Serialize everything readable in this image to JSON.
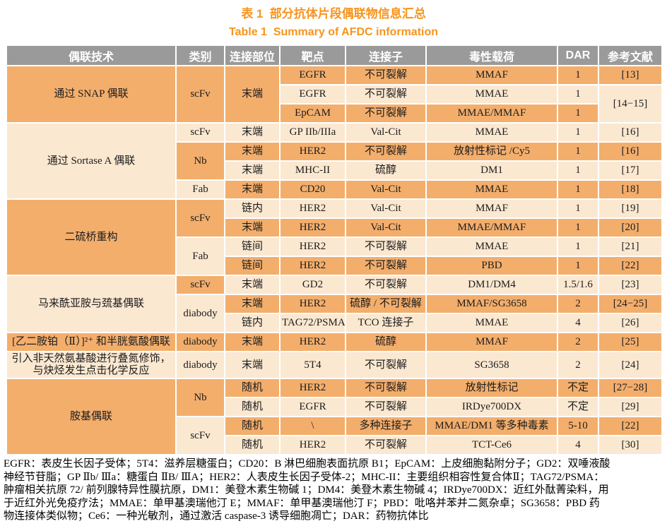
{
  "page": {
    "title_cn": "表 1  部分抗体片段偶联物信息汇总",
    "title_en": "Table 1  Summary of AFDC information"
  },
  "colors": {
    "accent_orange": "#F7941D",
    "header_gray": "#9A9A9A",
    "row_dark": "#F3AE6C",
    "row_light": "#FBE8D1"
  },
  "table": {
    "headers": [
      "偶联技术",
      "类别",
      "连接部位",
      "靶点",
      "连接子",
      "毒性载荷",
      "DAR",
      "参考文献"
    ],
    "col_keys": [
      "technique",
      "category",
      "site",
      "target",
      "linker",
      "payload",
      "dar",
      "reference"
    ],
    "rows": [
      [
        {
          "c": 0,
          "t": "通过 SNAP 偶联",
          "rs": 3,
          "s": "d"
        },
        {
          "c": 1,
          "t": "scFv",
          "rs": 3,
          "s": "d"
        },
        {
          "c": 2,
          "t": "末端",
          "rs": 3,
          "s": "d"
        },
        {
          "c": 3,
          "t": "EGFR",
          "s": "d"
        },
        {
          "c": 4,
          "t": "不可裂解",
          "s": "d"
        },
        {
          "c": 5,
          "t": "MMAF",
          "s": "d"
        },
        {
          "c": 6,
          "t": "1",
          "s": "d"
        },
        {
          "c": 7,
          "t": "[13]",
          "s": "d"
        }
      ],
      [
        {
          "c": 3,
          "t": "EGFR",
          "s": "l"
        },
        {
          "c": 4,
          "t": "不可裂解",
          "s": "l"
        },
        {
          "c": 5,
          "t": "MMAE",
          "s": "l"
        },
        {
          "c": 6,
          "t": "1",
          "s": "l"
        },
        {
          "c": 7,
          "t": "[14−15]",
          "rs": 2,
          "s": "l"
        }
      ],
      [
        {
          "c": 3,
          "t": "EpCAM",
          "s": "d"
        },
        {
          "c": 4,
          "t": "不可裂解",
          "s": "d"
        },
        {
          "c": 5,
          "t": "MMAE/MMAF",
          "s": "d"
        },
        {
          "c": 6,
          "t": "1",
          "s": "d"
        }
      ],
      [
        {
          "c": 0,
          "t": "通过 Sortase A 偶联",
          "rs": 4,
          "s": "l"
        },
        {
          "c": 1,
          "t": "scFv",
          "s": "l"
        },
        {
          "c": 2,
          "t": "末端",
          "s": "l"
        },
        {
          "c": 3,
          "t": "GP IIb/IIIa",
          "s": "l"
        },
        {
          "c": 4,
          "t": "Val-Cit",
          "s": "l"
        },
        {
          "c": 5,
          "t": "MMAE",
          "s": "l"
        },
        {
          "c": 6,
          "t": "1",
          "s": "l"
        },
        {
          "c": 7,
          "t": "[16]",
          "s": "l"
        }
      ],
      [
        {
          "c": 1,
          "t": "Nb",
          "rs": 2,
          "s": "d"
        },
        {
          "c": 2,
          "t": "末端",
          "s": "d"
        },
        {
          "c": 3,
          "t": "HER2",
          "s": "d"
        },
        {
          "c": 4,
          "t": "不可裂解",
          "s": "d"
        },
        {
          "c": 5,
          "t": "放射性标记 /Cy5",
          "s": "d"
        },
        {
          "c": 6,
          "t": "1",
          "s": "d"
        },
        {
          "c": 7,
          "t": "[16]",
          "s": "d"
        }
      ],
      [
        {
          "c": 2,
          "t": "末端",
          "s": "l"
        },
        {
          "c": 3,
          "t": "MHC-II",
          "s": "l"
        },
        {
          "c": 4,
          "t": "硫醇",
          "s": "l"
        },
        {
          "c": 5,
          "t": "DM1",
          "s": "l"
        },
        {
          "c": 6,
          "t": "1",
          "s": "l"
        },
        {
          "c": 7,
          "t": "[17]",
          "s": "l"
        }
      ],
      [
        {
          "c": 1,
          "t": "Fab",
          "s": "l"
        },
        {
          "c": 2,
          "t": "末端",
          "s": "d"
        },
        {
          "c": 3,
          "t": "CD20",
          "s": "d"
        },
        {
          "c": 4,
          "t": "Val-Cit",
          "s": "d"
        },
        {
          "c": 5,
          "t": "MMAE",
          "s": "d"
        },
        {
          "c": 6,
          "t": "1",
          "s": "d"
        },
        {
          "c": 7,
          "t": "[18]",
          "s": "d"
        }
      ],
      [
        {
          "c": 0,
          "t": "二硫桥重构",
          "rs": 4,
          "s": "d"
        },
        {
          "c": 1,
          "t": "scFv",
          "rs": 2,
          "s": "d"
        },
        {
          "c": 2,
          "t": "链内",
          "s": "l"
        },
        {
          "c": 3,
          "t": "HER2",
          "s": "l"
        },
        {
          "c": 4,
          "t": "Val-Cit",
          "s": "l"
        },
        {
          "c": 5,
          "t": "MMAF",
          "s": "l"
        },
        {
          "c": 6,
          "t": "1",
          "s": "l"
        },
        {
          "c": 7,
          "t": "[19]",
          "s": "l"
        }
      ],
      [
        {
          "c": 2,
          "t": "末端",
          "s": "d"
        },
        {
          "c": 3,
          "t": "HER2",
          "s": "d"
        },
        {
          "c": 4,
          "t": "Val-Cit",
          "s": "d"
        },
        {
          "c": 5,
          "t": "MMAE/MMAF",
          "s": "d"
        },
        {
          "c": 6,
          "t": "1",
          "s": "d"
        },
        {
          "c": 7,
          "t": "[20]",
          "s": "d"
        }
      ],
      [
        {
          "c": 1,
          "t": "Fab",
          "rs": 2,
          "s": "l"
        },
        {
          "c": 2,
          "t": "链间",
          "s": "l"
        },
        {
          "c": 3,
          "t": "HER2",
          "s": "l"
        },
        {
          "c": 4,
          "t": "不可裂解",
          "s": "l"
        },
        {
          "c": 5,
          "t": "MMAE",
          "s": "l"
        },
        {
          "c": 6,
          "t": "1",
          "s": "l"
        },
        {
          "c": 7,
          "t": "[21]",
          "s": "l"
        }
      ],
      [
        {
          "c": 2,
          "t": "链间",
          "s": "d"
        },
        {
          "c": 3,
          "t": "HER2",
          "s": "d"
        },
        {
          "c": 4,
          "t": "不可裂解",
          "s": "d"
        },
        {
          "c": 5,
          "t": "PBD",
          "s": "d"
        },
        {
          "c": 6,
          "t": "1",
          "s": "d"
        },
        {
          "c": 7,
          "t": "[22]",
          "s": "d"
        }
      ],
      [
        {
          "c": 0,
          "t": "马来酰亚胺与巯基偶联",
          "rs": 3,
          "s": "l"
        },
        {
          "c": 1,
          "t": "scFv",
          "s": "d"
        },
        {
          "c": 2,
          "t": "末端",
          "s": "l"
        },
        {
          "c": 3,
          "t": "GD2",
          "s": "l"
        },
        {
          "c": 4,
          "t": "不可裂解",
          "s": "l"
        },
        {
          "c": 5,
          "t": "DM1/DM4",
          "s": "l"
        },
        {
          "c": 6,
          "t": "1.5/1.6",
          "s": "l"
        },
        {
          "c": 7,
          "t": "[23]",
          "s": "l"
        }
      ],
      [
        {
          "c": 1,
          "t": "diabody",
          "rs": 2,
          "s": "l"
        },
        {
          "c": 2,
          "t": "末端",
          "s": "d"
        },
        {
          "c": 3,
          "t": "HER2",
          "s": "d"
        },
        {
          "c": 4,
          "t": "硫醇 / 不可裂解",
          "s": "d"
        },
        {
          "c": 5,
          "t": "MMAF/SG3658",
          "s": "d"
        },
        {
          "c": 6,
          "t": "2",
          "s": "d"
        },
        {
          "c": 7,
          "t": "[24−25]",
          "s": "d"
        }
      ],
      [
        {
          "c": 2,
          "t": "链内",
          "s": "l"
        },
        {
          "c": 3,
          "t": "TAG72/PSMA",
          "s": "l"
        },
        {
          "c": 4,
          "t": "TCO 连接子",
          "s": "l"
        },
        {
          "c": 5,
          "t": "MMAE",
          "s": "l"
        },
        {
          "c": 6,
          "t": "4",
          "s": "l"
        },
        {
          "c": 7,
          "t": "[26]",
          "s": "l"
        }
      ],
      [
        {
          "c": 0,
          "t": "[乙二胺铂（Ⅱ）]²⁺ 和半胱氨酸偶联",
          "s": "d",
          "a": "left"
        },
        {
          "c": 1,
          "t": "diabody",
          "s": "d"
        },
        {
          "c": 2,
          "t": "末端",
          "s": "d"
        },
        {
          "c": 3,
          "t": "HER2",
          "s": "d"
        },
        {
          "c": 4,
          "t": "硫醇",
          "s": "d"
        },
        {
          "c": 5,
          "t": "MMAF",
          "s": "d"
        },
        {
          "c": 6,
          "t": "2",
          "s": "d"
        },
        {
          "c": 7,
          "t": "[25]",
          "s": "d"
        }
      ],
      [
        {
          "c": 0,
          "t": "引入非天然氨基酸进行叠氮修饰，与炔烃发生点击化学反应",
          "s": "l",
          "a": "left"
        },
        {
          "c": 1,
          "t": "diabody",
          "s": "l"
        },
        {
          "c": 2,
          "t": "末端",
          "s": "l"
        },
        {
          "c": 3,
          "t": "5T4",
          "s": "l"
        },
        {
          "c": 4,
          "t": "不可裂解",
          "s": "l"
        },
        {
          "c": 5,
          "t": "SG3658",
          "s": "l"
        },
        {
          "c": 6,
          "t": "2",
          "s": "l"
        },
        {
          "c": 7,
          "t": "[24]",
          "s": "l"
        }
      ],
      [
        {
          "c": 0,
          "t": "胺基偶联",
          "rs": 4,
          "s": "d"
        },
        {
          "c": 1,
          "t": "Nb",
          "rs": 2,
          "s": "d"
        },
        {
          "c": 2,
          "t": "随机",
          "s": "d"
        },
        {
          "c": 3,
          "t": "HER2",
          "s": "d"
        },
        {
          "c": 4,
          "t": "不可裂解",
          "s": "d"
        },
        {
          "c": 5,
          "t": "放射性标记",
          "s": "d"
        },
        {
          "c": 6,
          "t": "不定",
          "s": "d"
        },
        {
          "c": 7,
          "t": "[27−28]",
          "s": "d"
        }
      ],
      [
        {
          "c": 2,
          "t": "随机",
          "s": "l"
        },
        {
          "c": 3,
          "t": "EGFR",
          "s": "l"
        },
        {
          "c": 4,
          "t": "不可裂解",
          "s": "l"
        },
        {
          "c": 5,
          "t": "IRDye700DX",
          "s": "l"
        },
        {
          "c": 6,
          "t": "不定",
          "s": "l"
        },
        {
          "c": 7,
          "t": "[29]",
          "s": "l"
        }
      ],
      [
        {
          "c": 1,
          "t": "scFv",
          "rs": 2,
          "s": "l"
        },
        {
          "c": 2,
          "t": "随机",
          "s": "d"
        },
        {
          "c": 3,
          "t": "\\",
          "s": "d"
        },
        {
          "c": 4,
          "t": "多种连接子",
          "s": "d"
        },
        {
          "c": 5,
          "t": "MMAE/DM1 等多种毒素",
          "s": "d"
        },
        {
          "c": 6,
          "t": "5-10",
          "s": "d"
        },
        {
          "c": 7,
          "t": "[22]",
          "s": "d"
        }
      ],
      [
        {
          "c": 2,
          "t": "随机",
          "s": "l"
        },
        {
          "c": 3,
          "t": "HER2",
          "s": "l"
        },
        {
          "c": 4,
          "t": "不可裂解",
          "s": "l"
        },
        {
          "c": 5,
          "t": "TCT-Ce6",
          "s": "l"
        },
        {
          "c": 6,
          "t": "4",
          "s": "l"
        },
        {
          "c": 7,
          "t": "[30]",
          "s": "l"
        }
      ]
    ]
  },
  "footnote": {
    "lines": [
      "EGFR：表皮生长因子受体；5T4：滋养层糖蛋白；CD20：B 淋巴细胞表面抗原 B1；EpCAM：上皮细胞黏附分子；GD2：双唾液酸",
      "神经节苷脂；GP Ⅱb/ Ⅲa：糖蛋白 ⅡB/ ⅢA；HER2：人表皮生长因子受体-2；MHC-II：主要组织相容性复合体Ⅱ；TAG72/PSMA：",
      "肿瘤相关抗原 72/ 前列腺特异性膜抗原，DM1：美登木素生物碱 1；DM4：美登木素生物碱 4；IRDye700DX：近红外酞菁染料，用",
      "于近红外光免疫疗法；MMAE：单甲基澳瑞他汀 E；MMAF：单甲基澳瑞他汀 F；PBD：吡咯并苯并二氮杂卓；SG3658：PBD 药",
      "物连接体类似物；Ce6：一种光敏剂，通过激活 caspase-3 诱导细胞凋亡；DAR：药物抗体比"
    ]
  }
}
